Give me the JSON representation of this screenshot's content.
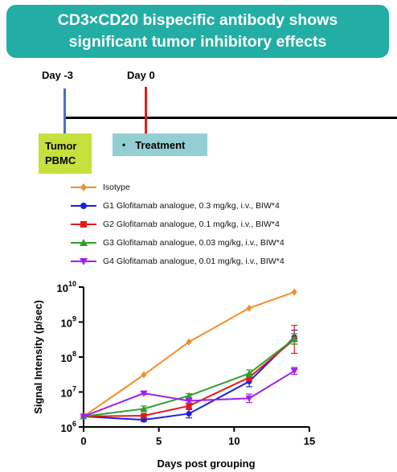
{
  "banner": {
    "line1": "CD3×CD20 bispecific antibody shows",
    "line2": "significant tumor inhibitory effects"
  },
  "timeline": {
    "day_minus3": "Day -3",
    "day_0": "Day 0",
    "tumor_line1": "Tumor",
    "tumor_line2": "PBMC",
    "treatment_bullet": "•",
    "treatment": "Treatment",
    "colors": {
      "day_minus3": "#4472c4",
      "day_0": "#e0201f",
      "tumor_box": "#c6e03e",
      "treatment_box": "#93cfd2"
    }
  },
  "chart_data": {
    "type": "line",
    "xlabel": "Days post grouping",
    "ylabel": "Signal Intensity (p/sec)",
    "xlim": [
      0,
      15
    ],
    "ylim": [
      1000000,
      10000000000
    ],
    "yscale": "log",
    "x_ticks": [
      0,
      5,
      10,
      15
    ],
    "y_ticks": [
      {
        "value": 1000000,
        "base": "10",
        "exp": "6"
      },
      {
        "value": 10000000,
        "base": "10",
        "exp": "7"
      },
      {
        "value": 100000000,
        "base": "10",
        "exp": "8"
      },
      {
        "value": 1000000000,
        "base": "10",
        "exp": "9"
      },
      {
        "value": 10000000000,
        "base": "10",
        "exp": "10"
      }
    ],
    "x": [
      0,
      4,
      7,
      11,
      14
    ],
    "legend_position": "above",
    "series": [
      {
        "name": "Isotype",
        "color": "#f28e2b",
        "marker": "diamond",
        "values": [
          2000000,
          31000000,
          270000000,
          2500000000,
          7200000000
        ],
        "err": [
          0,
          0,
          0,
          0,
          0
        ]
      },
      {
        "name": "G1 Glofitamab analogue, 0.3 mg/kg, i.v., BIW*4",
        "color": "#1f1fe0",
        "marker": "circle",
        "values": [
          2000000,
          1600000,
          2400000,
          20000000,
          370000000
        ],
        "err": [
          0,
          0.05,
          0.12,
          0.15,
          0.2
        ]
      },
      {
        "name": "G2 Glofitamab analogue, 0.1 mg/kg, i.v., BIW*4",
        "color": "#e31a1c",
        "marker": "square",
        "values": [
          2000000,
          2100000,
          4000000,
          26000000,
          320000000
        ],
        "err": [
          0,
          0.05,
          0.08,
          0.1,
          0.4
        ]
      },
      {
        "name": "G3 Glofitamab analogue, 0.03 mg/kg, i.v., BIW*4",
        "color": "#2ca02c",
        "marker": "triangle-up",
        "values": [
          2000000,
          3300000,
          7800000,
          34000000,
          330000000
        ],
        "err": [
          0,
          0.08,
          0.06,
          0.1,
          0.15
        ]
      },
      {
        "name": "G4 Glofitamab analogue, 0.01 mg/kg, i.v., BIW*4",
        "color": "#a020f0",
        "marker": "triangle-down",
        "values": [
          2000000,
          9200000,
          5600000,
          6600000,
          40000000
        ],
        "err": [
          0,
          0.04,
          0.06,
          0.12,
          0.1
        ]
      }
    ]
  }
}
